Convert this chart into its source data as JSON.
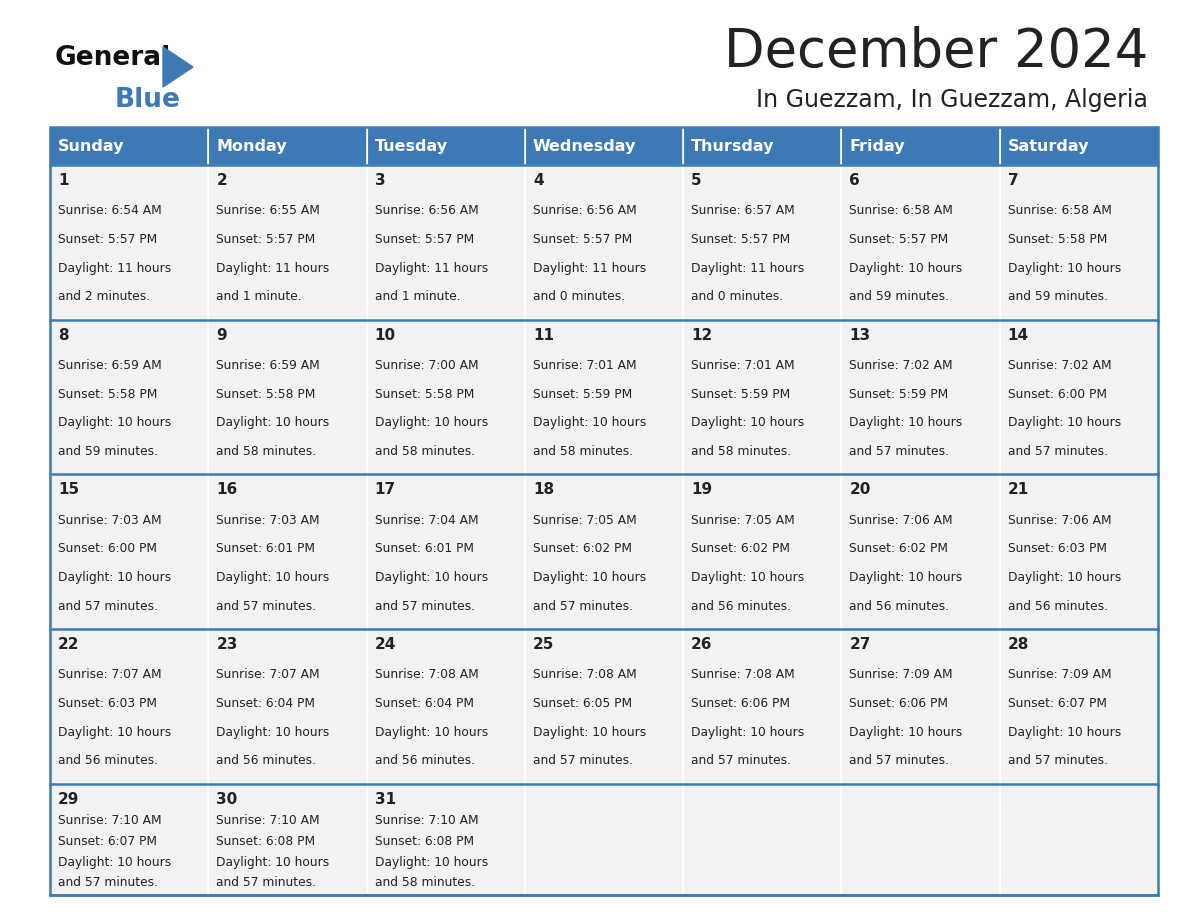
{
  "title": "December 2024",
  "subtitle": "In Guezzam, In Guezzam, Algeria",
  "header_color": "#3d7ab5",
  "header_text_color": "#ffffff",
  "cell_bg_color": "#f2f2f2",
  "border_color": "#3d7ab5",
  "text_color": "#222222",
  "days_of_week": [
    "Sunday",
    "Monday",
    "Tuesday",
    "Wednesday",
    "Thursday",
    "Friday",
    "Saturday"
  ],
  "calendar": [
    [
      {
        "day": 1,
        "sunrise": "6:54 AM",
        "sunset": "5:57 PM",
        "daylight": "11 hours and 2 minutes."
      },
      {
        "day": 2,
        "sunrise": "6:55 AM",
        "sunset": "5:57 PM",
        "daylight": "11 hours and 1 minute."
      },
      {
        "day": 3,
        "sunrise": "6:56 AM",
        "sunset": "5:57 PM",
        "daylight": "11 hours and 1 minute."
      },
      {
        "day": 4,
        "sunrise": "6:56 AM",
        "sunset": "5:57 PM",
        "daylight": "11 hours and 0 minutes."
      },
      {
        "day": 5,
        "sunrise": "6:57 AM",
        "sunset": "5:57 PM",
        "daylight": "11 hours and 0 minutes."
      },
      {
        "day": 6,
        "sunrise": "6:58 AM",
        "sunset": "5:57 PM",
        "daylight": "10 hours and 59 minutes."
      },
      {
        "day": 7,
        "sunrise": "6:58 AM",
        "sunset": "5:58 PM",
        "daylight": "10 hours and 59 minutes."
      }
    ],
    [
      {
        "day": 8,
        "sunrise": "6:59 AM",
        "sunset": "5:58 PM",
        "daylight": "10 hours and 59 minutes."
      },
      {
        "day": 9,
        "sunrise": "6:59 AM",
        "sunset": "5:58 PM",
        "daylight": "10 hours and 58 minutes."
      },
      {
        "day": 10,
        "sunrise": "7:00 AM",
        "sunset": "5:58 PM",
        "daylight": "10 hours and 58 minutes."
      },
      {
        "day": 11,
        "sunrise": "7:01 AM",
        "sunset": "5:59 PM",
        "daylight": "10 hours and 58 minutes."
      },
      {
        "day": 12,
        "sunrise": "7:01 AM",
        "sunset": "5:59 PM",
        "daylight": "10 hours and 58 minutes."
      },
      {
        "day": 13,
        "sunrise": "7:02 AM",
        "sunset": "5:59 PM",
        "daylight": "10 hours and 57 minutes."
      },
      {
        "day": 14,
        "sunrise": "7:02 AM",
        "sunset": "6:00 PM",
        "daylight": "10 hours and 57 minutes."
      }
    ],
    [
      {
        "day": 15,
        "sunrise": "7:03 AM",
        "sunset": "6:00 PM",
        "daylight": "10 hours and 57 minutes."
      },
      {
        "day": 16,
        "sunrise": "7:03 AM",
        "sunset": "6:01 PM",
        "daylight": "10 hours and 57 minutes."
      },
      {
        "day": 17,
        "sunrise": "7:04 AM",
        "sunset": "6:01 PM",
        "daylight": "10 hours and 57 minutes."
      },
      {
        "day": 18,
        "sunrise": "7:05 AM",
        "sunset": "6:02 PM",
        "daylight": "10 hours and 57 minutes."
      },
      {
        "day": 19,
        "sunrise": "7:05 AM",
        "sunset": "6:02 PM",
        "daylight": "10 hours and 56 minutes."
      },
      {
        "day": 20,
        "sunrise": "7:06 AM",
        "sunset": "6:02 PM",
        "daylight": "10 hours and 56 minutes."
      },
      {
        "day": 21,
        "sunrise": "7:06 AM",
        "sunset": "6:03 PM",
        "daylight": "10 hours and 56 minutes."
      }
    ],
    [
      {
        "day": 22,
        "sunrise": "7:07 AM",
        "sunset": "6:03 PM",
        "daylight": "10 hours and 56 minutes."
      },
      {
        "day": 23,
        "sunrise": "7:07 AM",
        "sunset": "6:04 PM",
        "daylight": "10 hours and 56 minutes."
      },
      {
        "day": 24,
        "sunrise": "7:08 AM",
        "sunset": "6:04 PM",
        "daylight": "10 hours and 56 minutes."
      },
      {
        "day": 25,
        "sunrise": "7:08 AM",
        "sunset": "6:05 PM",
        "daylight": "10 hours and 57 minutes."
      },
      {
        "day": 26,
        "sunrise": "7:08 AM",
        "sunset": "6:06 PM",
        "daylight": "10 hours and 57 minutes."
      },
      {
        "day": 27,
        "sunrise": "7:09 AM",
        "sunset": "6:06 PM",
        "daylight": "10 hours and 57 minutes."
      },
      {
        "day": 28,
        "sunrise": "7:09 AM",
        "sunset": "6:07 PM",
        "daylight": "10 hours and 57 minutes."
      }
    ],
    [
      {
        "day": 29,
        "sunrise": "7:10 AM",
        "sunset": "6:07 PM",
        "daylight": "10 hours and 57 minutes."
      },
      {
        "day": 30,
        "sunrise": "7:10 AM",
        "sunset": "6:08 PM",
        "daylight": "10 hours and 57 minutes."
      },
      {
        "day": 31,
        "sunrise": "7:10 AM",
        "sunset": "6:08 PM",
        "daylight": "10 hours and 58 minutes."
      },
      null,
      null,
      null,
      null
    ]
  ]
}
